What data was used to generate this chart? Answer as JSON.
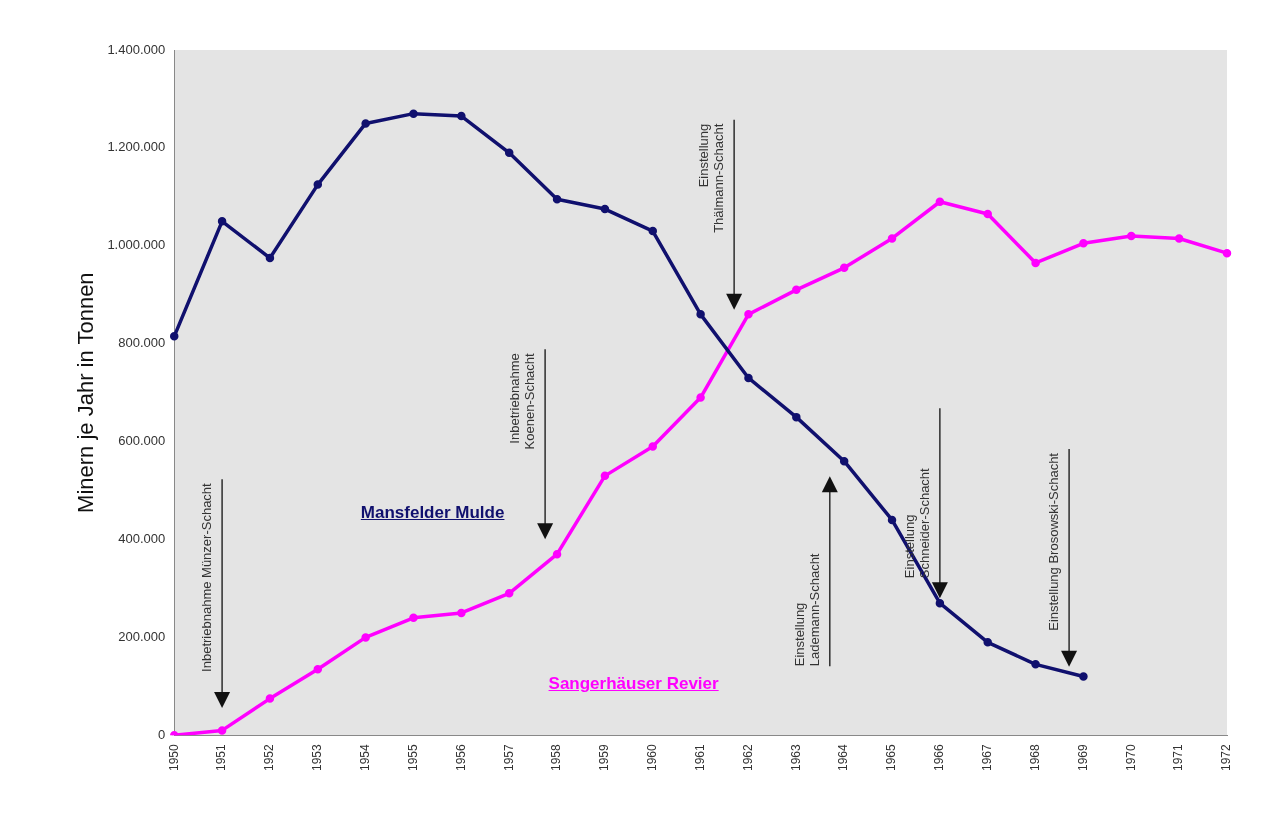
{
  "chart_data": {
    "type": "line",
    "ylabel": "Minern je Jahr in Tonnen",
    "categories": [
      "1950",
      "1951",
      "1952",
      "1953",
      "1954",
      "1955",
      "1956",
      "1957",
      "1958",
      "1959",
      "1960",
      "1961",
      "1962",
      "1963",
      "1964",
      "1965",
      "1966",
      "1967",
      "1968",
      "1969",
      "1970",
      "1971",
      "1972"
    ],
    "series": [
      {
        "name": "Mansfelder Mulde",
        "color": "#10106e",
        "values": [
          815000,
          1050000,
          975000,
          1125000,
          1250000,
          1270000,
          1265000,
          1190000,
          1095000,
          1075000,
          1030000,
          860000,
          730000,
          650000,
          560000,
          440000,
          270000,
          190000,
          145000,
          120000,
          null,
          null,
          null
        ]
      },
      {
        "name": "Sangerhäuser Revier",
        "color": "#ff00ff",
        "values": [
          0,
          10000,
          75000,
          135000,
          200000,
          240000,
          250000,
          290000,
          370000,
          530000,
          590000,
          690000,
          860000,
          910000,
          955000,
          1015000,
          1090000,
          1065000,
          965000,
          1005000,
          1020000,
          1015000,
          985000
        ]
      }
    ],
    "ylim": [
      0,
      1400000
    ],
    "yticks": [
      0,
      {
        "value": 200000,
        "label": "200.000"
      },
      {
        "value": 400000,
        "label": "400.000"
      },
      {
        "value": 600000,
        "label": "600.000"
      },
      {
        "value": 800000,
        "label": "800.000"
      },
      {
        "value": 1000000,
        "label": "1.000.000"
      },
      {
        "value": 1200000,
        "label": "1.200.000"
      },
      {
        "value": 1400000,
        "label": "1.400.000"
      }
    ],
    "grid": false,
    "legend": false,
    "marker": "circle",
    "line_style": "solid",
    "annotations": [
      "Inbetriebnahme Münzer-Schacht",
      "Inbetriebnahme\nKoenen-Schacht",
      "Einstellung\nThälmann-Schacht",
      "Einstellung\nLademann-Schacht",
      {
        "text": "Einstellung\nSchneider-Schacht",
        "x": "1966",
        "y": 270000
      },
      "Einstellung Brosowski-Schacht"
    ]
  }
}
